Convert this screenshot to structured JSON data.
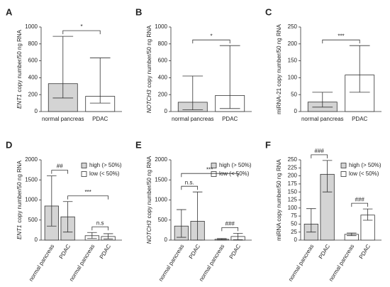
{
  "chart_data": [
    {
      "type": "bar",
      "title": "A",
      "ylabel_gene": "ENT1",
      "ylabel": "copy number/50 ng RNA",
      "categories": [
        "normal pancreas",
        "PDAC"
      ],
      "values": [
        330,
        180
      ],
      "upper": [
        890,
        635
      ],
      "lower": [
        160,
        100
      ],
      "colors": [
        "#d4d4d4",
        "#ffffff"
      ],
      "ylim": [
        0,
        1000
      ],
      "yticks": [
        0,
        200,
        400,
        600,
        800,
        1000
      ],
      "annotations": [
        {
          "text": "*",
          "between": [
            0,
            1
          ]
        }
      ]
    },
    {
      "type": "bar",
      "title": "B",
      "ylabel_gene": "NOTCH3",
      "ylabel": "copy number/50 ng RNA",
      "categories": [
        "normal pancreas",
        "PDAC"
      ],
      "values": [
        110,
        190
      ],
      "upper": [
        420,
        780
      ],
      "lower": [
        20,
        35
      ],
      "colors": [
        "#d4d4d4",
        "#ffffff"
      ],
      "ylim": [
        0,
        1000
      ],
      "yticks": [
        0,
        200,
        400,
        600,
        800,
        1000
      ],
      "annotations": [
        {
          "text": "*",
          "between": [
            0,
            1
          ]
        }
      ]
    },
    {
      "type": "bar",
      "title": "C",
      "ylabel": "miRNA-21 copy number/50 ng RNA",
      "categories": [
        "normal pancreas",
        "PDAC"
      ],
      "values": [
        28,
        108
      ],
      "upper": [
        57,
        195
      ],
      "lower": [
        13,
        57
      ],
      "colors": [
        "#d4d4d4",
        "#ffffff"
      ],
      "ylim": [
        0,
        250
      ],
      "yticks": [
        0,
        50,
        100,
        150,
        200,
        250
      ],
      "annotations": [
        {
          "text": "***",
          "between": [
            0,
            1
          ]
        }
      ]
    },
    {
      "type": "bar",
      "title": "D",
      "ylabel_gene": "ENT1",
      "ylabel": "copy number/50 ng RNA",
      "categories": [
        "normal pancreas",
        "PDAC",
        "normal pancreas",
        "PDAC"
      ],
      "series": [
        {
          "name": "high (> 50%)",
          "color": "#d4d4d4",
          "values": [
            850,
            580,
            null,
            null
          ],
          "upper": [
            1600,
            960,
            null,
            null
          ],
          "lower": [
            350,
            200,
            null,
            null
          ]
        },
        {
          "name": "low (< 50%)",
          "color": "#ffffff",
          "values": [
            null,
            null,
            110,
            90
          ],
          "upper": [
            null,
            null,
            190,
            160
          ],
          "lower": [
            null,
            null,
            40,
            30
          ]
        }
      ],
      "ylim": [
        0,
        2000
      ],
      "yticks": [
        0,
        500,
        1000,
        1500,
        2000
      ],
      "annotations": [
        {
          "text": "##",
          "between": [
            0,
            1
          ]
        },
        {
          "text": "n.s",
          "between": [
            2,
            3
          ]
        },
        {
          "text": "***",
          "between": [
            1,
            3
          ]
        }
      ]
    },
    {
      "type": "bar",
      "title": "E",
      "ylabel_gene": "NOTCH3",
      "ylabel": "copy number/50 ng RNA",
      "categories": [
        "normal pancreas",
        "PDAC",
        "normal pancreas",
        "PDAC"
      ],
      "series": [
        {
          "name": "high (> 50%)",
          "color": "#d4d4d4",
          "values": [
            350,
            470,
            null,
            null
          ],
          "upper": [
            760,
            1200,
            null,
            null
          ],
          "lower": [
            70,
            0,
            null,
            null
          ]
        },
        {
          "name": "low (< 50%)",
          "color": "#ffffff",
          "values": [
            null,
            null,
            20,
            90
          ],
          "upper": [
            null,
            null,
            40,
            170
          ],
          "lower": [
            null,
            null,
            10,
            10
          ]
        }
      ],
      "ylim": [
        0,
        2000
      ],
      "yticks": [
        0,
        500,
        1000,
        1500,
        2000
      ],
      "annotations": [
        {
          "text": "n.s.",
          "between": [
            0,
            1
          ]
        },
        {
          "text": "###",
          "between": [
            2,
            3
          ]
        },
        {
          "text": "***",
          "between": [
            0,
            3
          ]
        }
      ]
    },
    {
      "type": "bar",
      "title": "F",
      "ylabel": "miRNA copy number/50 ng RNA",
      "categories": [
        "normal pancreas",
        "PDAC",
        "normal pancreas",
        "PDAC"
      ],
      "series": [
        {
          "name": "high (> 50%)",
          "color": "#d4d4d4",
          "values": [
            50,
            205,
            null,
            null
          ],
          "upper": [
            98,
            248,
            null,
            null
          ],
          "lower": [
            25,
            150,
            null,
            null
          ]
        },
        {
          "name": "low (< 50%)",
          "color": "#ffffff",
          "values": [
            null,
            null,
            18,
            78
          ],
          "upper": [
            null,
            null,
            22,
            97
          ],
          "lower": [
            null,
            null,
            14,
            62
          ]
        }
      ],
      "ylim": [
        0,
        250
      ],
      "yticks": [
        0,
        25,
        50,
        75,
        100,
        125,
        150,
        175,
        200,
        225,
        250
      ],
      "annotations": [
        {
          "text": "###",
          "between": [
            0,
            1
          ]
        },
        {
          "text": "###",
          "between": [
            2,
            3
          ]
        }
      ]
    }
  ]
}
